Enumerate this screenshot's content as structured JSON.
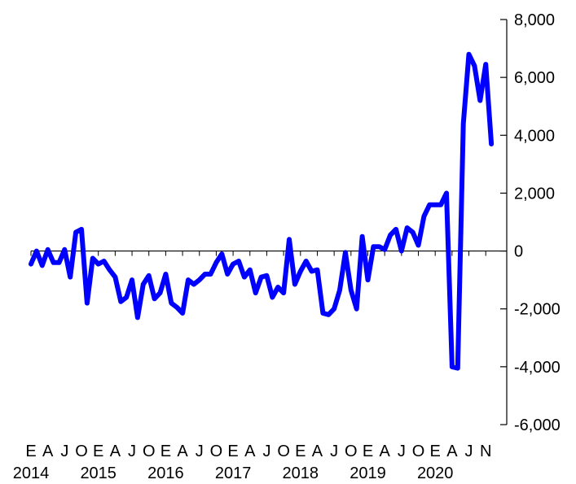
{
  "chart_data": {
    "type": "line",
    "title": "",
    "xlabel": "",
    "ylabel": "",
    "ylim": [
      -6000,
      8000
    ],
    "yticks": [
      -6000,
      -4000,
      -2000,
      0,
      2000,
      4000,
      6000,
      8000
    ],
    "ytick_labels": [
      "-6,000",
      "-4,000",
      "-2,000",
      "0",
      "2,000",
      "4,000",
      "6,000",
      "8,000"
    ],
    "y_axis_side": "right",
    "grid": false,
    "legend": "none",
    "x_month_labels": [
      "E",
      "A",
      "J",
      "O",
      "E",
      "A",
      "J",
      "O",
      "E",
      "A",
      "J",
      "O",
      "E",
      "A",
      "J",
      "O",
      "E",
      "A",
      "J",
      "O",
      "E",
      "A",
      "J",
      "O",
      "E",
      "A",
      "J",
      "N"
    ],
    "x_year_labels": [
      "2014",
      "2015",
      "2016",
      "2017",
      "2018",
      "2019",
      "2020"
    ],
    "x_start": "2014-01",
    "x_end": "2020-12",
    "series": [
      {
        "color": "#0000ff",
        "values": [
          -450,
          0,
          -500,
          50,
          -400,
          -400,
          50,
          -900,
          650,
          750,
          -1800,
          -250,
          -450,
          -350,
          -650,
          -900,
          -1750,
          -1600,
          -1000,
          -2300,
          -1150,
          -850,
          -1650,
          -1450,
          -800,
          -1800,
          -1950,
          -2150,
          -1000,
          -1150,
          -1000,
          -800,
          -800,
          -400,
          -100,
          -800,
          -450,
          -350,
          -900,
          -650,
          -1450,
          -900,
          -850,
          -1600,
          -1250,
          -1450,
          400,
          -1150,
          -700,
          -350,
          -700,
          -650,
          -2150,
          -2200,
          -2000,
          -1350,
          -50,
          -1350,
          -2000,
          500,
          -1000,
          150,
          150,
          50,
          550,
          750,
          0,
          800,
          650,
          200,
          1200,
          1600,
          1600,
          1600,
          2000,
          -4000,
          -4050,
          4400,
          6800,
          6400,
          5200,
          6450,
          3700
        ]
      }
    ]
  }
}
